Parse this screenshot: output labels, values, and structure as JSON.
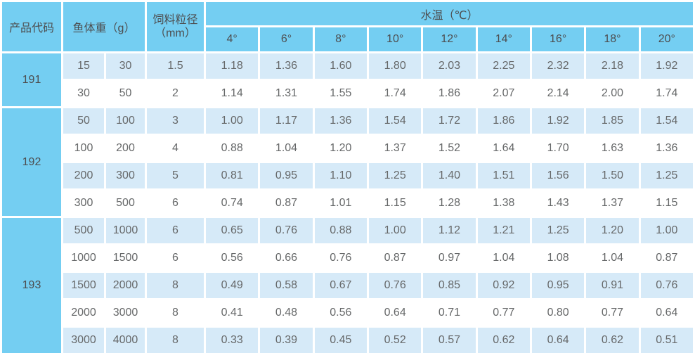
{
  "table": {
    "header": {
      "product_code": "产品代码",
      "fish_weight": "鱼体重（g）",
      "particle_size_line1": "饲料粒径",
      "particle_size_line2": "（mm）",
      "water_temp": "水温（℃）",
      "temps": [
        "4°",
        "6°",
        "8°",
        "10°",
        "12°",
        "14°",
        "16°",
        "18°",
        "20°"
      ]
    },
    "groups": [
      {
        "code": "191",
        "rows": [
          {
            "weight_min": "15",
            "weight_max": "30",
            "particle": "1.5",
            "values": [
              "1.18",
              "1.36",
              "1.60",
              "1.80",
              "2.03",
              "2.25",
              "2.32",
              "2.18",
              "1.92"
            ]
          },
          {
            "weight_min": "30",
            "weight_max": "50",
            "particle": "2",
            "values": [
              "1.14",
              "1.31",
              "1.55",
              "1.74",
              "1.86",
              "2.07",
              "2.14",
              "2.00",
              "1.74"
            ]
          }
        ]
      },
      {
        "code": "192",
        "rows": [
          {
            "weight_min": "50",
            "weight_max": "100",
            "particle": "3",
            "values": [
              "1.00",
              "1.17",
              "1.36",
              "1.54",
              "1.72",
              "1.86",
              "1.92",
              "1.85",
              "1.54"
            ]
          },
          {
            "weight_min": "100",
            "weight_max": "200",
            "particle": "4",
            "values": [
              "0.88",
              "1.04",
              "1.20",
              "1.37",
              "1.52",
              "1.64",
              "1.70",
              "1.63",
              "1.36"
            ]
          },
          {
            "weight_min": "200",
            "weight_max": "300",
            "particle": "5",
            "values": [
              "0.81",
              "0.95",
              "1.10",
              "1.25",
              "1.40",
              "1.51",
              "1.56",
              "1.50",
              "1.25"
            ]
          },
          {
            "weight_min": "300",
            "weight_max": "500",
            "particle": "6",
            "values": [
              "0.74",
              "0.87",
              "1.01",
              "1.15",
              "1.28",
              "1.38",
              "1.43",
              "1.37",
              "1.15"
            ]
          }
        ]
      },
      {
        "code": "193",
        "rows": [
          {
            "weight_min": "500",
            "weight_max": "1000",
            "particle": "6",
            "values": [
              "0.65",
              "0.76",
              "0.88",
              "1.00",
              "1.12",
              "1.21",
              "1.25",
              "1.20",
              "1.00"
            ]
          },
          {
            "weight_min": "1000",
            "weight_max": "1500",
            "particle": "6",
            "values": [
              "0.56",
              "0.66",
              "0.76",
              "0.87",
              "0.97",
              "1.04",
              "1.08",
              "1.04",
              "0.87"
            ]
          },
          {
            "weight_min": "1500",
            "weight_max": "2000",
            "particle": "8",
            "values": [
              "0.49",
              "0.58",
              "0.67",
              "0.76",
              "0.85",
              "0.92",
              "0.95",
              "0.91",
              "0.76"
            ]
          },
          {
            "weight_min": "2000",
            "weight_max": "3000",
            "particle": "8",
            "values": [
              "0.41",
              "0.48",
              "0.56",
              "0.64",
              "0.71",
              "0.77",
              "0.80",
              "0.77",
              "0.64"
            ]
          },
          {
            "weight_min": "3000",
            "weight_max": "4000",
            "particle": "8",
            "values": [
              "0.33",
              "0.39",
              "0.45",
              "0.52",
              "0.57",
              "0.62",
              "0.64",
              "0.62",
              "0.51"
            ]
          }
        ]
      }
    ]
  },
  "colors": {
    "header_blue": "#74CEF2",
    "stripe_blue": "#D6EAF8",
    "row_white": "#FFFFFF",
    "header_text": "#4D4E50",
    "data_text": "#666869"
  }
}
